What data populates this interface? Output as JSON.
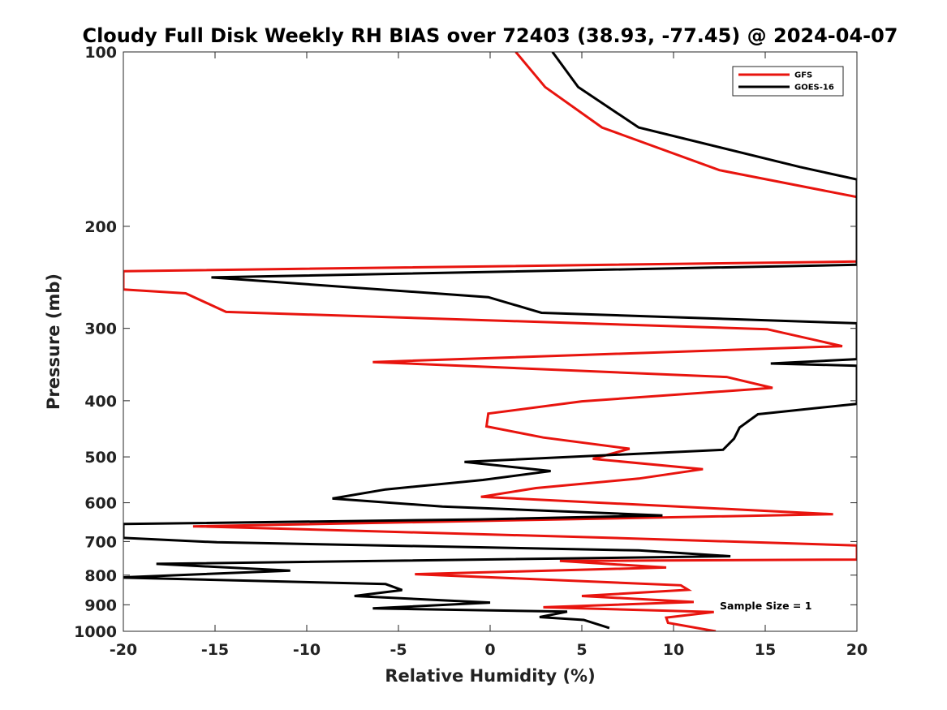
{
  "chart_data": {
    "type": "line",
    "title": "Cloudy Full Disk Weekly RH BIAS over 72403 (38.93, -77.45) @ 2024-04-07",
    "xlabel": "Relative Humidity (%)",
    "ylabel": "Pressure (mb)",
    "xlim": [
      -20,
      20
    ],
    "ylim": [
      100,
      1000
    ],
    "yscale": "log",
    "yaxis_inverted": true,
    "xticks": [
      -20,
      -15,
      -10,
      -5,
      0,
      5,
      10,
      15,
      20
    ],
    "xtick_labels": [
      "-20",
      "-15",
      "-10",
      "-5",
      "0",
      "5",
      "10",
      "15",
      "20"
    ],
    "yticks": [
      100,
      200,
      300,
      400,
      500,
      600,
      700,
      800,
      900,
      1000
    ],
    "ytick_labels": [
      "100",
      "200",
      "300",
      "400",
      "500",
      "600",
      "700",
      "800",
      "900",
      "1000"
    ],
    "grid": false,
    "legend_position": "top-right",
    "annotation": "Sample Size = 1",
    "series": [
      {
        "name": "GFS",
        "color": "#e8140e",
        "points": [
          [
            1.4,
            100
          ],
          [
            3.0,
            115
          ],
          [
            6.1,
            135
          ],
          [
            12.5,
            160
          ],
          [
            20,
            178
          ],
          [
            20,
            230
          ],
          [
            -20,
            239
          ],
          [
            -20,
            257
          ],
          [
            -16.6,
            261
          ],
          [
            -14.4,
            281
          ],
          [
            15.1,
            301
          ],
          [
            19.2,
            322
          ],
          [
            -6.4,
            343
          ],
          [
            12.9,
            364
          ],
          [
            15.4,
            380
          ],
          [
            5.0,
            401
          ],
          [
            -0.1,
            421
          ],
          [
            -0.2,
            443
          ],
          [
            2.9,
            463
          ],
          [
            7.6,
            484
          ],
          [
            5.6,
            504
          ],
          [
            11.6,
            525
          ],
          [
            8.1,
            545
          ],
          [
            2.5,
            566
          ],
          [
            -0.5,
            586
          ],
          [
            18.7,
            628
          ],
          [
            -16.2,
            659
          ],
          [
            -16.0,
            659
          ],
          [
            6.1,
            689
          ],
          [
            20,
            711
          ],
          [
            20,
            752
          ],
          [
            3.8,
            756
          ],
          [
            9.6,
            776
          ],
          [
            -4.1,
            797
          ],
          [
            10.4,
            833
          ],
          [
            10.8,
            848
          ],
          [
            5.0,
            869
          ],
          [
            11.1,
            890
          ],
          [
            2.9,
            909
          ],
          [
            12.2,
            926
          ],
          [
            9.6,
            947
          ],
          [
            9.7,
            967
          ],
          [
            12.3,
            1000
          ]
        ]
      },
      {
        "name": "GOES-16",
        "color": "#000000",
        "points": [
          [
            3.4,
            100
          ],
          [
            4.8,
            115
          ],
          [
            8.1,
            135
          ],
          [
            16.9,
            158
          ],
          [
            20,
            166
          ],
          [
            20,
            233
          ],
          [
            -15.2,
            245
          ],
          [
            -0.1,
            265
          ],
          [
            2.8,
            282
          ],
          [
            20,
            294
          ],
          [
            20,
            339
          ],
          [
            15.3,
            345
          ],
          [
            20,
            348
          ],
          [
            20,
            405
          ],
          [
            14.6,
            422
          ],
          [
            13.6,
            445
          ],
          [
            13.3,
            465
          ],
          [
            12.7,
            486
          ],
          [
            -1.4,
            510
          ],
          [
            3.3,
            529
          ],
          [
            -0.4,
            548
          ],
          [
            -5.7,
            569
          ],
          [
            -8.6,
            590
          ],
          [
            -2.6,
            609
          ],
          [
            9.4,
            631
          ],
          [
            -0.6,
            641
          ],
          [
            -20,
            653
          ],
          [
            -20,
            690
          ],
          [
            -14.9,
            702
          ],
          [
            8.1,
            725
          ],
          [
            13.1,
            742
          ],
          [
            -18.2,
            765
          ],
          [
            -10.9,
            786
          ],
          [
            -20,
            807
          ],
          [
            -20,
            808
          ],
          [
            -5.7,
            829
          ],
          [
            -4.8,
            849
          ],
          [
            -7.4,
            869
          ],
          [
            0.0,
            892
          ],
          [
            -6.4,
            913
          ],
          [
            4.2,
            925
          ],
          [
            2.7,
            945
          ],
          [
            5.1,
            956
          ],
          [
            6.5,
            987
          ]
        ]
      }
    ]
  }
}
